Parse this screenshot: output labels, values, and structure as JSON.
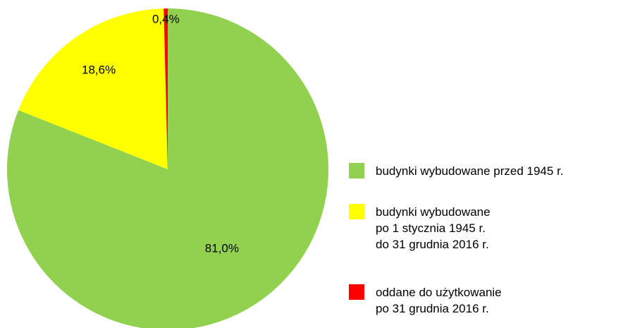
{
  "chart_data": {
    "type": "pie",
    "series": [
      {
        "name": "budynki wybudowane przed 1945 r.",
        "color": "#92d050",
        "values": [
          81.0
        ],
        "value_labels": [
          "81,0%"
        ]
      },
      {
        "name": "budynki wybudowane\npo 1 stycznia 1945 r.\ndo 31 grudnia 2016 r.",
        "color": "#ffff00",
        "values": [
          18.6
        ],
        "value_labels": [
          "18,6%"
        ]
      },
      {
        "name": "oddane do użytkowanie\npo 31 grudnia 2016 r.",
        "color": "#ff0000",
        "values": [
          0.4
        ],
        "value_labels": [
          "0,4%"
        ]
      }
    ],
    "legend": "right"
  }
}
